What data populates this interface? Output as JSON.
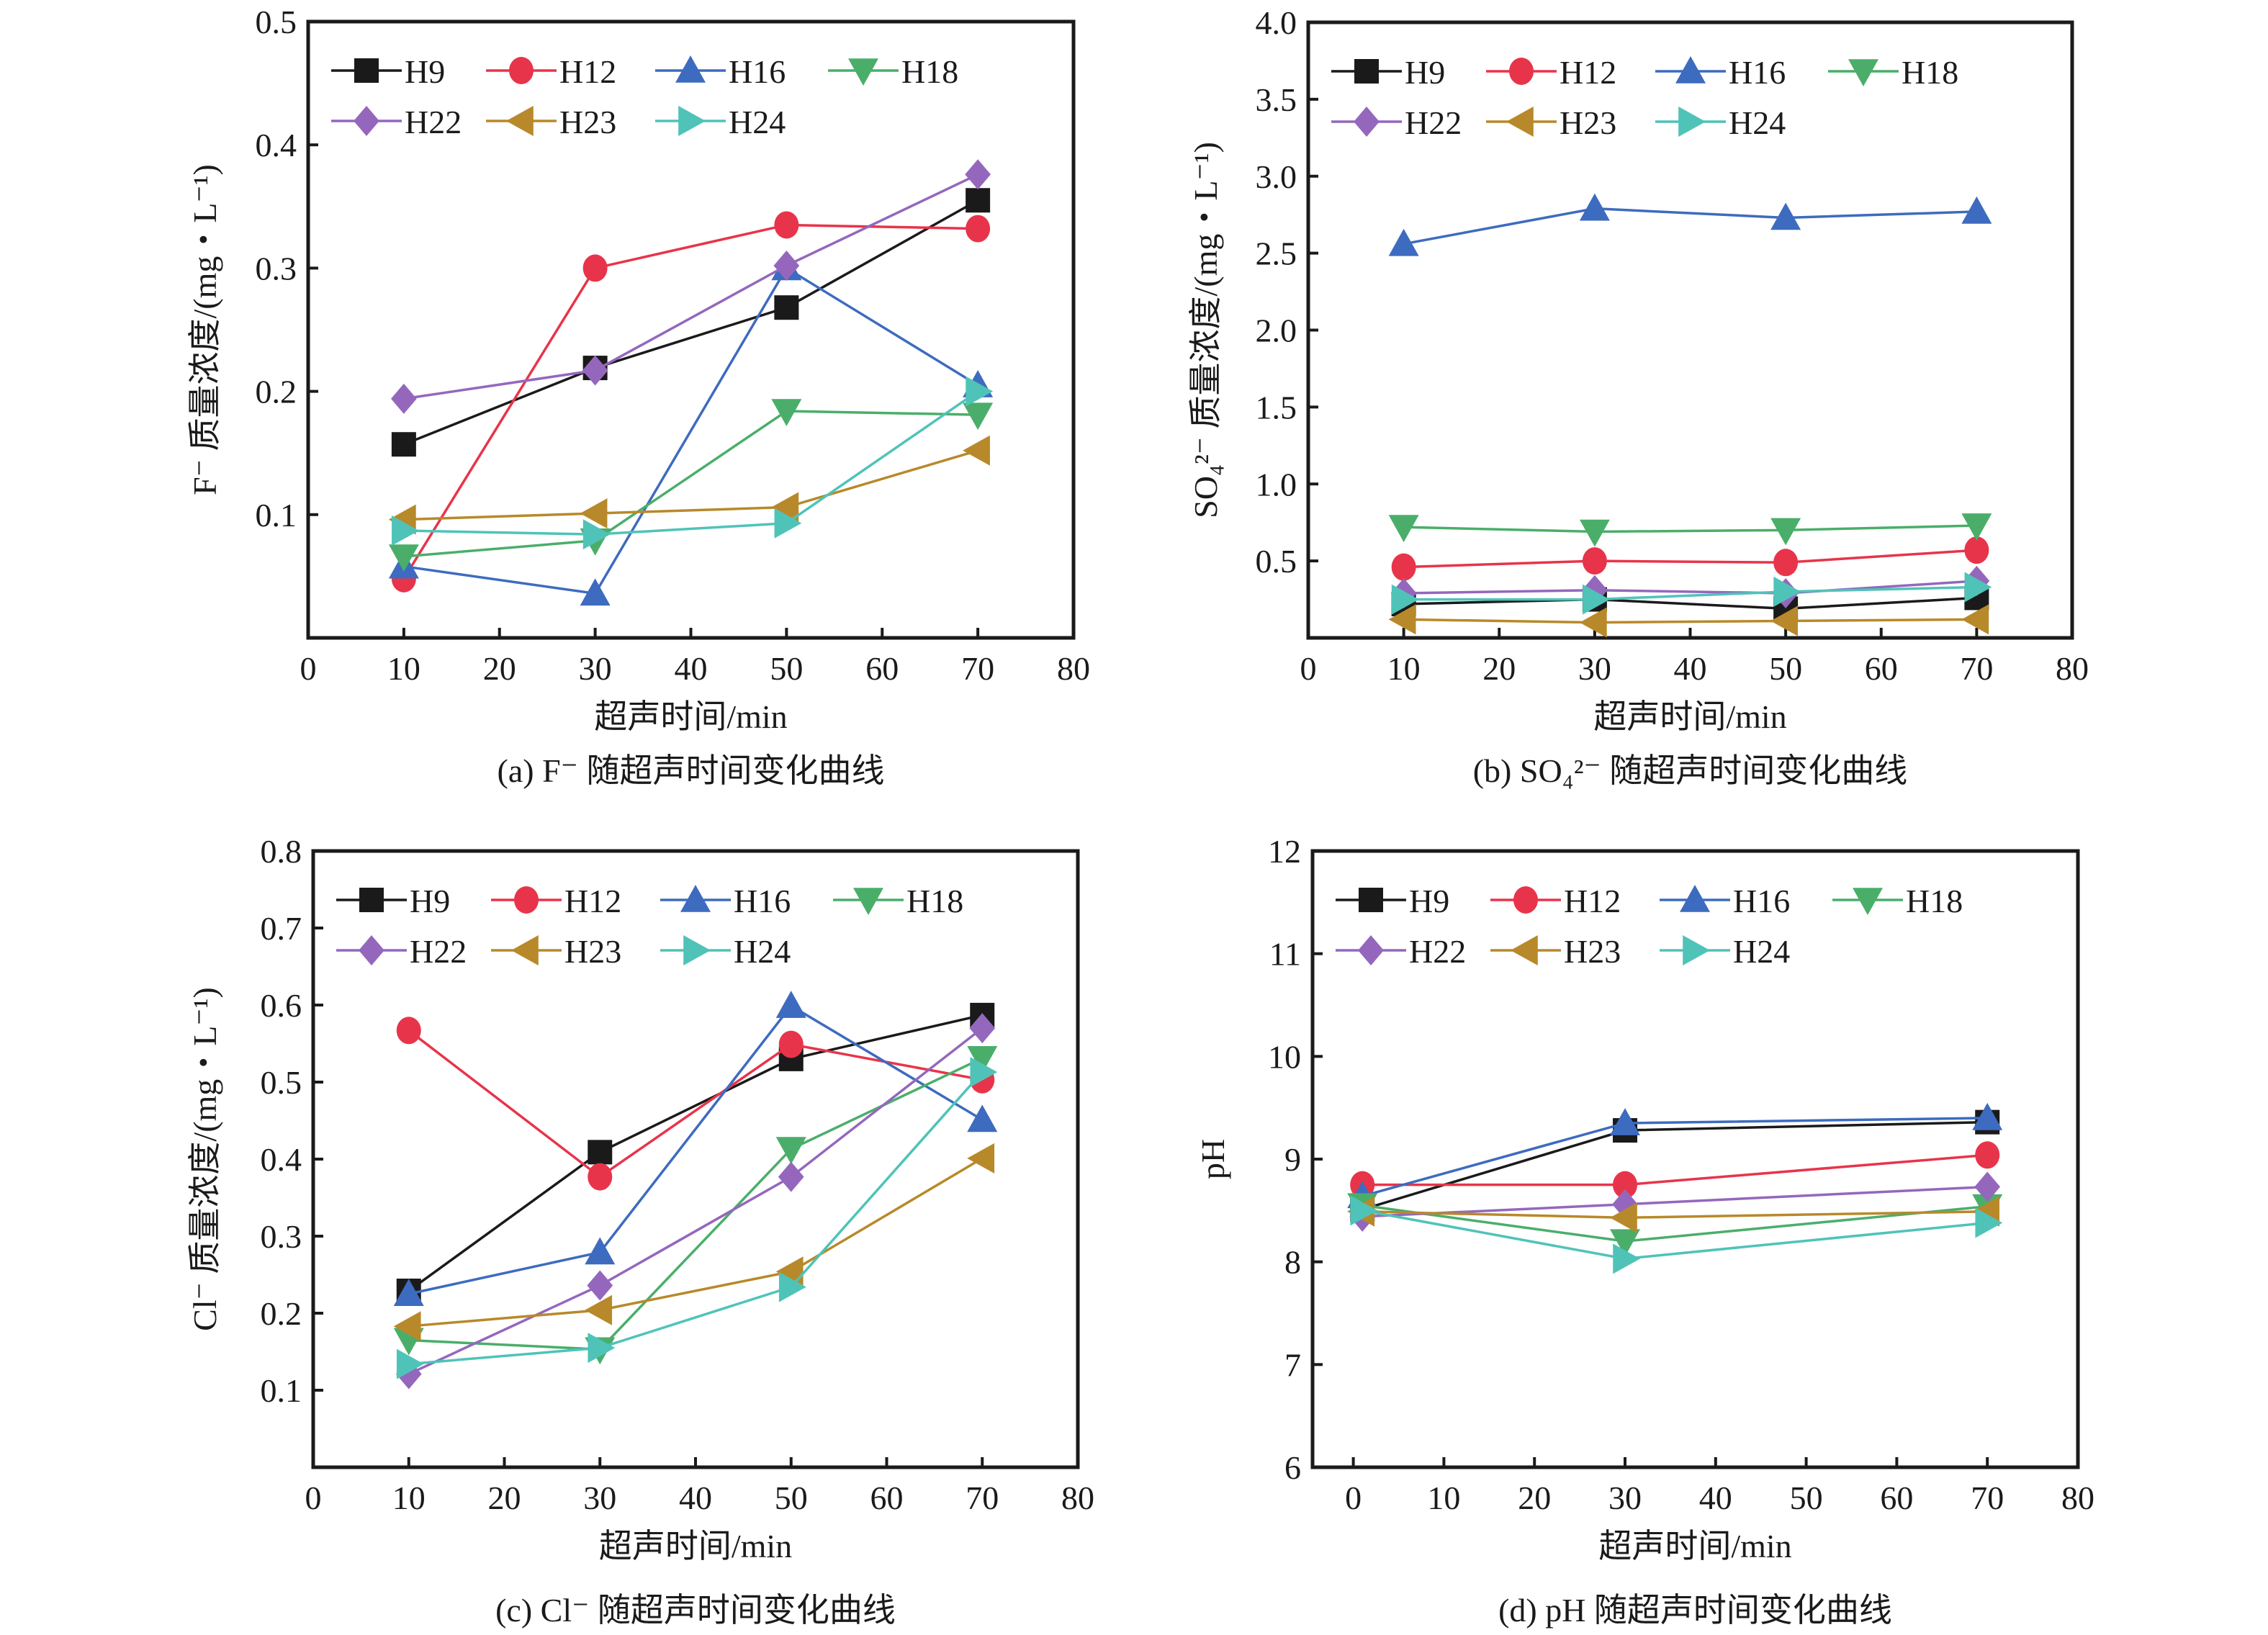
{
  "figure": {
    "series_style": [
      {
        "name": "H9",
        "color": "#1a1a1a",
        "marker": "square"
      },
      {
        "name": "H12",
        "color": "#e8344a",
        "marker": "circle"
      },
      {
        "name": "H16",
        "color": "#3d6bbf",
        "marker": "triangle-up"
      },
      {
        "name": "H18",
        "color": "#4aae6a",
        "marker": "triangle-down"
      },
      {
        "name": "H22",
        "color": "#9467bd",
        "marker": "diamond"
      },
      {
        "name": "H23",
        "color": "#b8892a",
        "marker": "triangle-left"
      },
      {
        "name": "H24",
        "color": "#4fc3b8",
        "marker": "triangle-right"
      }
    ]
  },
  "chart_data": [
    {
      "id": "a",
      "type": "line",
      "caption": "(a) F⁻ 随超声时间变化曲线",
      "xlabel": "超声时间/min",
      "ylabel": "F⁻ 质量浓度/(mg・L⁻¹)",
      "xlim": [
        0,
        80
      ],
      "ylim": [
        0,
        0.5
      ],
      "xticks": [
        0,
        10,
        20,
        30,
        40,
        50,
        60,
        70,
        80
      ],
      "xtick_labels": [
        "0",
        "10",
        "20",
        "30",
        "40",
        "50",
        "60",
        "70",
        "80"
      ],
      "yticks": [
        0.1,
        0.2,
        0.3,
        0.4,
        0.5
      ],
      "ytick_labels": [
        "0.1",
        "0.2",
        "0.3",
        "0.4",
        "0.5"
      ],
      "legend": "top-left",
      "grid": false,
      "x": [
        10,
        30,
        50,
        70
      ],
      "series": [
        {
          "name": "H9",
          "values": [
            0.157,
            0.219,
            0.268,
            0.355
          ]
        },
        {
          "name": "H12",
          "values": [
            0.048,
            0.3,
            0.335,
            0.332
          ]
        },
        {
          "name": "H16",
          "values": [
            0.058,
            0.036,
            0.3,
            0.205
          ]
        },
        {
          "name": "H18",
          "values": [
            0.066,
            0.079,
            0.184,
            0.181
          ]
        },
        {
          "name": "H22",
          "values": [
            0.194,
            0.217,
            0.302,
            0.376
          ]
        },
        {
          "name": "H23",
          "values": [
            0.096,
            0.101,
            0.106,
            0.152
          ]
        },
        {
          "name": "H24",
          "values": [
            0.087,
            0.084,
            0.093,
            0.2
          ]
        }
      ]
    },
    {
      "id": "b",
      "type": "line",
      "caption": "(b) SO₄²⁻ 随超声时间变化曲线",
      "xlabel": "超声时间/min",
      "ylabel": "SO₄²⁻ 质量浓度/(mg・L⁻¹)",
      "xlim": [
        0,
        80
      ],
      "ylim": [
        0,
        4.0
      ],
      "xticks": [
        0,
        10,
        20,
        30,
        40,
        50,
        60,
        70,
        80
      ],
      "xtick_labels": [
        "0",
        "10",
        "20",
        "30",
        "40",
        "50",
        "60",
        "70",
        "80"
      ],
      "yticks": [
        0.5,
        1.0,
        1.5,
        2.0,
        2.5,
        3.0,
        3.5,
        4.0
      ],
      "ytick_labels": [
        "0.5",
        "1.0",
        "1.5",
        "2.0",
        "2.5",
        "3.0",
        "3.5",
        "4.0"
      ],
      "legend": "top-left",
      "grid": false,
      "x": [
        10,
        30,
        50,
        70
      ],
      "series": [
        {
          "name": "H9",
          "values": [
            0.22,
            0.25,
            0.19,
            0.26
          ]
        },
        {
          "name": "H12",
          "values": [
            0.46,
            0.5,
            0.49,
            0.57
          ]
        },
        {
          "name": "H16",
          "values": [
            2.56,
            2.79,
            2.73,
            2.77
          ]
        },
        {
          "name": "H18",
          "values": [
            0.72,
            0.69,
            0.7,
            0.73
          ]
        },
        {
          "name": "H22",
          "values": [
            0.29,
            0.31,
            0.29,
            0.37
          ]
        },
        {
          "name": "H23",
          "values": [
            0.12,
            0.1,
            0.11,
            0.12
          ]
        },
        {
          "name": "H24",
          "values": [
            0.25,
            0.25,
            0.3,
            0.33
          ]
        }
      ]
    },
    {
      "id": "c",
      "type": "line",
      "caption": "(c) Cl⁻ 随超声时间变化曲线",
      "xlabel": "超声时间/min",
      "ylabel": "Cl⁻ 质量浓度/(mg・L⁻¹)",
      "xlim": [
        0,
        80
      ],
      "ylim": [
        0,
        0.8
      ],
      "xticks": [
        0,
        10,
        20,
        30,
        40,
        50,
        60,
        70,
        80
      ],
      "xtick_labels": [
        "0",
        "10",
        "20",
        "30",
        "40",
        "50",
        "60",
        "70",
        "80"
      ],
      "yticks": [
        0.1,
        0.2,
        0.3,
        0.4,
        0.5,
        0.6,
        0.7,
        0.8
      ],
      "ytick_labels": [
        "0.1",
        "0.2",
        "0.3",
        "0.4",
        "0.5",
        "0.6",
        "0.7",
        "0.8"
      ],
      "legend": "top-left",
      "grid": false,
      "x": [
        10,
        30,
        50,
        70
      ],
      "series": [
        {
          "name": "H9",
          "values": [
            0.229,
            0.409,
            0.53,
            0.587
          ]
        },
        {
          "name": "H12",
          "values": [
            0.567,
            0.377,
            0.549,
            0.503
          ]
        },
        {
          "name": "H16",
          "values": [
            0.225,
            0.279,
            0.599,
            0.451
          ]
        },
        {
          "name": "H18",
          "values": [
            0.165,
            0.153,
            0.413,
            0.531
          ]
        },
        {
          "name": "H22",
          "values": [
            0.121,
            0.236,
            0.377,
            0.57
          ]
        },
        {
          "name": "H23",
          "values": [
            0.183,
            0.204,
            0.254,
            0.401
          ]
        },
        {
          "name": "H24",
          "values": [
            0.134,
            0.155,
            0.234,
            0.513
          ]
        }
      ]
    },
    {
      "id": "d",
      "type": "line",
      "caption": "(d) pH 随超声时间变化曲线",
      "xlabel": "超声时间/min",
      "ylabel": "pH",
      "xlim": [
        -4.5,
        80
      ],
      "ylim": [
        6,
        12
      ],
      "xticks": [
        0,
        10,
        20,
        30,
        40,
        50,
        60,
        70,
        80
      ],
      "xtick_labels": [
        "0",
        "10",
        "20",
        "30",
        "40",
        "50",
        "60",
        "70",
        "80"
      ],
      "yticks": [
        6,
        7,
        8,
        9,
        10,
        11,
        12
      ],
      "ytick_labels": [
        "6",
        "7",
        "8",
        "9",
        "10",
        "11",
        "12"
      ],
      "legend": "top-left",
      "grid": false,
      "x": [
        1,
        30,
        70
      ],
      "series": [
        {
          "name": "H9",
          "values": [
            8.51,
            9.28,
            9.36
          ]
        },
        {
          "name": "H12",
          "values": [
            8.75,
            8.75,
            9.04
          ]
        },
        {
          "name": "H16",
          "values": [
            8.64,
            9.35,
            9.4
          ]
        },
        {
          "name": "H18",
          "values": [
            8.55,
            8.2,
            8.54
          ]
        },
        {
          "name": "H22",
          "values": [
            8.44,
            8.56,
            8.73
          ]
        },
        {
          "name": "H23",
          "values": [
            8.49,
            8.43,
            8.49
          ]
        },
        {
          "name": "H24",
          "values": [
            8.5,
            8.03,
            8.38
          ]
        }
      ]
    }
  ]
}
